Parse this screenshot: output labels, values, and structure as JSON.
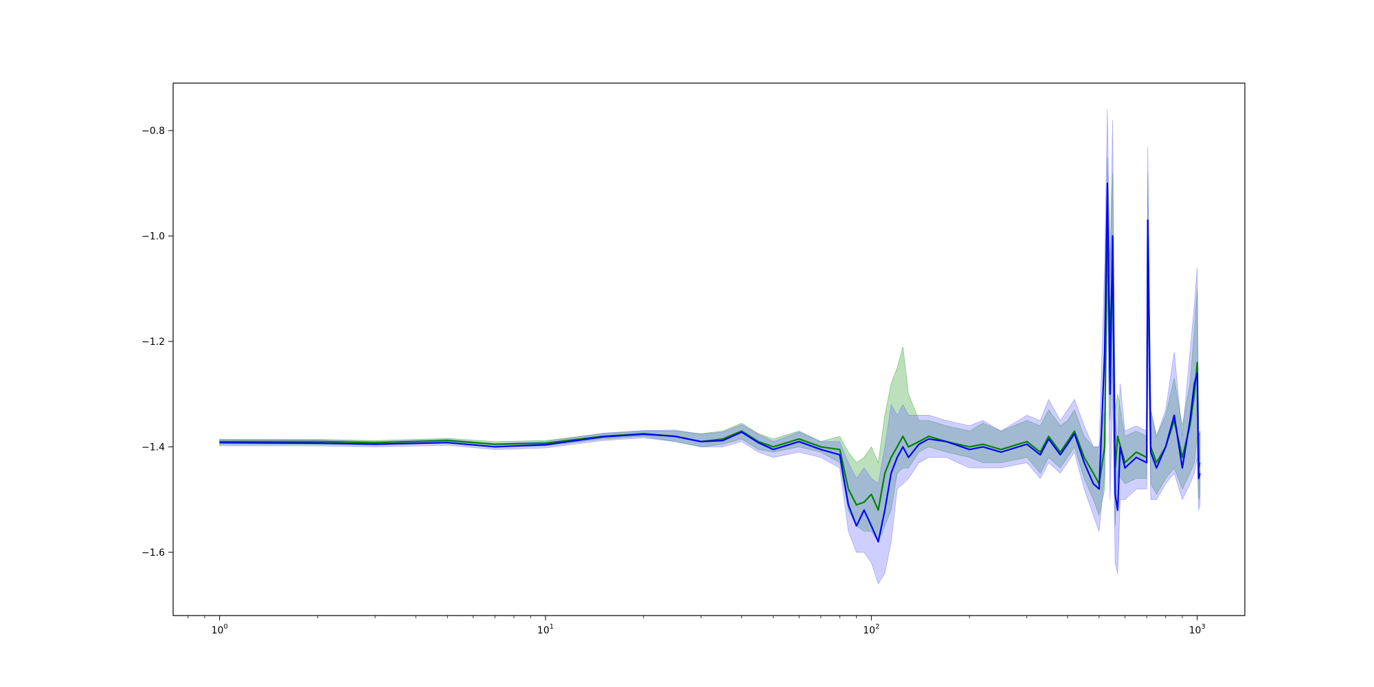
{
  "chart_data": {
    "type": "line",
    "title": "",
    "xlabel": "",
    "ylabel": "",
    "xscale": "log",
    "xlim": [
      0.72,
      1400
    ],
    "ylim": [
      -1.72,
      -0.71
    ],
    "grid": false,
    "legend": "none",
    "x_ticks": [
      {
        "value": 1,
        "base": "10",
        "exp": "0"
      },
      {
        "value": 10,
        "base": "10",
        "exp": "1"
      },
      {
        "value": 100,
        "base": "10",
        "exp": "2"
      },
      {
        "value": 1000,
        "base": "10",
        "exp": "3"
      }
    ],
    "y_ticks": [
      {
        "value": -1.6,
        "label": "−1.6"
      },
      {
        "value": -1.4,
        "label": "−1.4"
      },
      {
        "value": -1.2,
        "label": "−1.2"
      },
      {
        "value": -1.0,
        "label": "−1.0"
      },
      {
        "value": -0.8,
        "label": "−0.8"
      }
    ],
    "series": [
      {
        "color": "#008000",
        "band_color": "#2ca02c",
        "x": [
          1,
          2,
          3,
          5,
          7,
          10,
          15,
          20,
          25,
          30,
          35,
          40,
          45,
          50,
          60,
          70,
          80,
          85,
          90,
          95,
          100,
          105,
          110,
          115,
          120,
          125,
          130,
          140,
          150,
          170,
          200,
          220,
          250,
          300,
          330,
          350,
          380,
          400,
          420,
          450,
          480,
          500,
          520,
          530,
          540,
          550,
          560,
          570,
          600,
          650,
          700,
          705,
          720,
          750,
          800,
          850,
          900,
          950,
          980,
          1000,
          1010,
          1020
        ],
        "y": [
          -1.39,
          -1.39,
          -1.392,
          -1.388,
          -1.395,
          -1.393,
          -1.38,
          -1.375,
          -1.38,
          -1.39,
          -1.385,
          -1.37,
          -1.39,
          -1.4,
          -1.385,
          -1.4,
          -1.405,
          -1.48,
          -1.51,
          -1.505,
          -1.49,
          -1.52,
          -1.45,
          -1.42,
          -1.4,
          -1.38,
          -1.4,
          -1.39,
          -1.38,
          -1.39,
          -1.4,
          -1.395,
          -1.405,
          -1.39,
          -1.41,
          -1.38,
          -1.41,
          -1.39,
          -1.37,
          -1.42,
          -1.45,
          -1.47,
          -1.4,
          -0.95,
          -1.2,
          -1.05,
          -1.44,
          -1.38,
          -1.43,
          -1.41,
          -1.42,
          -0.97,
          -1.4,
          -1.43,
          -1.4,
          -1.35,
          -1.42,
          -1.36,
          -1.3,
          -1.24,
          -1.44,
          -1.43
        ],
        "lower": [
          -1.395,
          -1.395,
          -1.396,
          -1.392,
          -1.4,
          -1.398,
          -1.385,
          -1.38,
          -1.39,
          -1.4,
          -1.395,
          -1.385,
          -1.405,
          -1.41,
          -1.4,
          -1.41,
          -1.43,
          -1.52,
          -1.55,
          -1.56,
          -1.56,
          -1.58,
          -1.55,
          -1.52,
          -1.45,
          -1.44,
          -1.44,
          -1.41,
          -1.4,
          -1.41,
          -1.42,
          -1.43,
          -1.43,
          -1.42,
          -1.45,
          -1.42,
          -1.44,
          -1.42,
          -1.4,
          -1.46,
          -1.5,
          -1.53,
          -1.48,
          -1.05,
          -1.35,
          -1.25,
          -1.55,
          -1.45,
          -1.47,
          -1.46,
          -1.46,
          -1.1,
          -1.47,
          -1.49,
          -1.46,
          -1.44,
          -1.48,
          -1.45,
          -1.43,
          -1.38,
          -1.5,
          -1.49
        ],
        "upper": [
          -1.386,
          -1.386,
          -1.388,
          -1.384,
          -1.39,
          -1.388,
          -1.375,
          -1.37,
          -1.37,
          -1.375,
          -1.37,
          -1.355,
          -1.375,
          -1.385,
          -1.37,
          -1.39,
          -1.38,
          -1.41,
          -1.43,
          -1.42,
          -1.4,
          -1.43,
          -1.34,
          -1.28,
          -1.25,
          -1.21,
          -1.3,
          -1.35,
          -1.35,
          -1.36,
          -1.37,
          -1.355,
          -1.37,
          -1.35,
          -1.36,
          -1.33,
          -1.36,
          -1.35,
          -1.33,
          -1.38,
          -1.4,
          -1.4,
          -1.33,
          -0.85,
          -1.05,
          -0.88,
          -1.33,
          -1.3,
          -1.38,
          -1.37,
          -1.38,
          -0.88,
          -1.33,
          -1.38,
          -1.34,
          -1.27,
          -1.36,
          -1.28,
          -1.18,
          -1.1,
          -1.38,
          -1.37
        ]
      },
      {
        "color": "#0000ff",
        "band_color": "#6a6aff",
        "x": [
          1,
          2,
          3,
          5,
          7,
          10,
          15,
          20,
          25,
          30,
          35,
          40,
          45,
          50,
          60,
          70,
          80,
          85,
          90,
          95,
          100,
          105,
          110,
          115,
          120,
          125,
          130,
          140,
          150,
          170,
          200,
          220,
          250,
          300,
          330,
          350,
          380,
          400,
          420,
          450,
          480,
          500,
          520,
          530,
          540,
          550,
          560,
          570,
          580,
          600,
          650,
          700,
          705,
          720,
          750,
          800,
          850,
          900,
          950,
          980,
          1000,
          1010,
          1020
        ],
        "y": [
          -1.392,
          -1.393,
          -1.395,
          -1.392,
          -1.4,
          -1.396,
          -1.381,
          -1.376,
          -1.38,
          -1.39,
          -1.388,
          -1.372,
          -1.392,
          -1.405,
          -1.39,
          -1.405,
          -1.415,
          -1.51,
          -1.55,
          -1.52,
          -1.55,
          -1.58,
          -1.52,
          -1.45,
          -1.42,
          -1.4,
          -1.42,
          -1.395,
          -1.385,
          -1.39,
          -1.405,
          -1.4,
          -1.41,
          -1.395,
          -1.415,
          -1.385,
          -1.415,
          -1.395,
          -1.375,
          -1.43,
          -1.47,
          -1.48,
          -1.22,
          -0.9,
          -1.3,
          -1.0,
          -1.49,
          -1.52,
          -1.4,
          -1.44,
          -1.42,
          -1.43,
          -0.97,
          -1.41,
          -1.44,
          -1.4,
          -1.34,
          -1.44,
          -1.35,
          -1.28,
          -1.26,
          -1.46,
          -1.45
        ],
        "lower": [
          -1.398,
          -1.398,
          -1.4,
          -1.397,
          -1.405,
          -1.402,
          -1.388,
          -1.383,
          -1.39,
          -1.4,
          -1.4,
          -1.39,
          -1.41,
          -1.42,
          -1.41,
          -1.42,
          -1.44,
          -1.56,
          -1.6,
          -1.6,
          -1.62,
          -1.66,
          -1.64,
          -1.58,
          -1.48,
          -1.47,
          -1.46,
          -1.43,
          -1.42,
          -1.42,
          -1.44,
          -1.44,
          -1.44,
          -1.43,
          -1.46,
          -1.43,
          -1.45,
          -1.43,
          -1.41,
          -1.48,
          -1.53,
          -1.56,
          -1.45,
          -1.1,
          -1.5,
          -1.3,
          -1.62,
          -1.64,
          -1.5,
          -1.5,
          -1.48,
          -1.48,
          -1.15,
          -1.5,
          -1.5,
          -1.47,
          -1.45,
          -1.5,
          -1.47,
          -1.45,
          -1.42,
          -1.52,
          -1.51
        ],
        "upper": [
          -1.386,
          -1.387,
          -1.39,
          -1.386,
          -1.394,
          -1.39,
          -1.374,
          -1.369,
          -1.368,
          -1.376,
          -1.372,
          -1.358,
          -1.376,
          -1.39,
          -1.372,
          -1.39,
          -1.39,
          -1.43,
          -1.46,
          -1.44,
          -1.46,
          -1.47,
          -1.4,
          -1.32,
          -1.34,
          -1.32,
          -1.34,
          -1.34,
          -1.34,
          -1.35,
          -1.36,
          -1.35,
          -1.37,
          -1.34,
          -1.35,
          -1.31,
          -1.35,
          -1.33,
          -1.31,
          -1.36,
          -1.4,
          -1.4,
          -1.05,
          -0.76,
          -1.08,
          -0.78,
          -1.34,
          -1.4,
          -1.28,
          -1.37,
          -1.36,
          -1.37,
          -0.83,
          -1.33,
          -1.38,
          -1.33,
          -1.22,
          -1.38,
          -1.22,
          -1.13,
          -1.06,
          -1.38,
          -1.37
        ]
      }
    ]
  }
}
